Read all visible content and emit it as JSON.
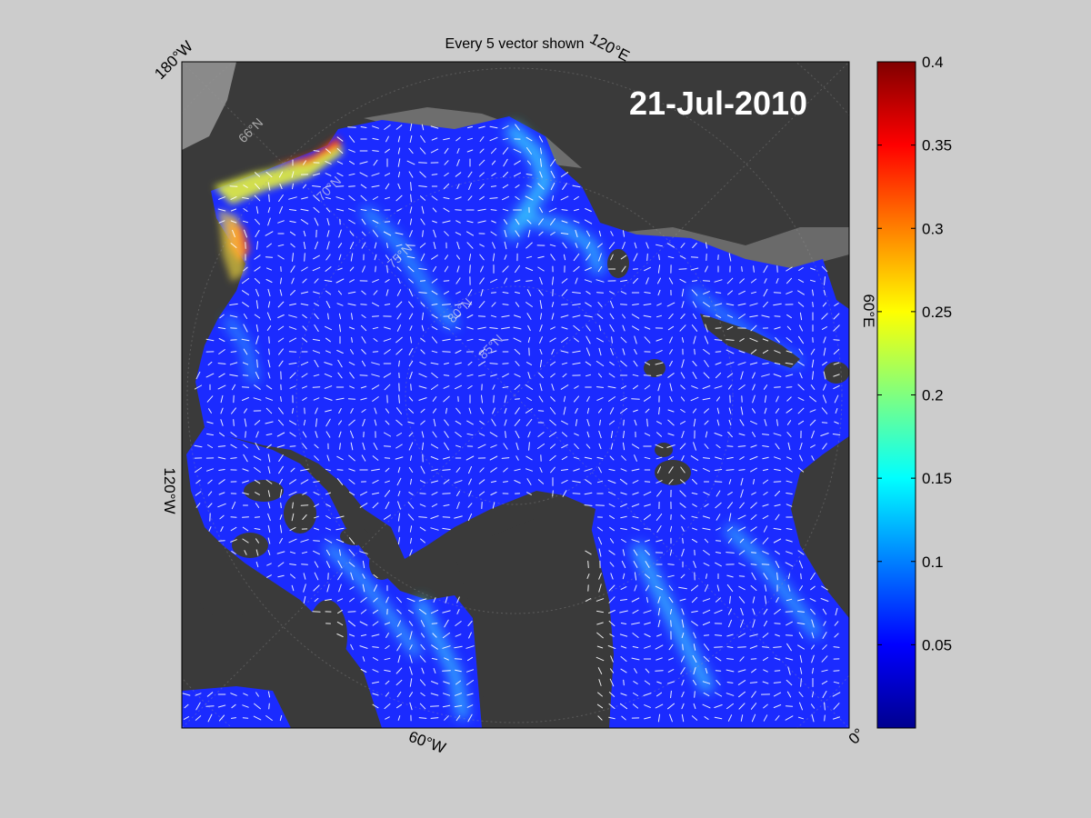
{
  "title": "Every 5 vector shown",
  "date": "21-Jul-2010",
  "longitude_labels": {
    "w180": "180°W",
    "e120": "120°E",
    "e60": "60°E",
    "w120": "120°W",
    "w60": "60°W",
    "zero": "0°"
  },
  "latitude_labels": [
    "66°N",
    "70°N",
    "75°N",
    "80°N",
    "85°N"
  ],
  "colorbar": {
    "colormap": "jet",
    "min": 0,
    "max": 0.4,
    "tick_labels": [
      "0.4",
      "0.35",
      "0.3",
      "0.25",
      "0.2",
      "0.15",
      "0.1",
      "0.05"
    ],
    "tick_values": [
      0.4,
      0.35,
      0.3,
      0.25,
      0.2,
      0.15,
      0.1,
      0.05
    ]
  },
  "colors": {
    "figure_background": "#cccccc",
    "land": "#3a3a3a",
    "coast_shelf": "#7a7a7a",
    "ocean_low": "#1b2bff",
    "vector": "#ffffff"
  }
}
